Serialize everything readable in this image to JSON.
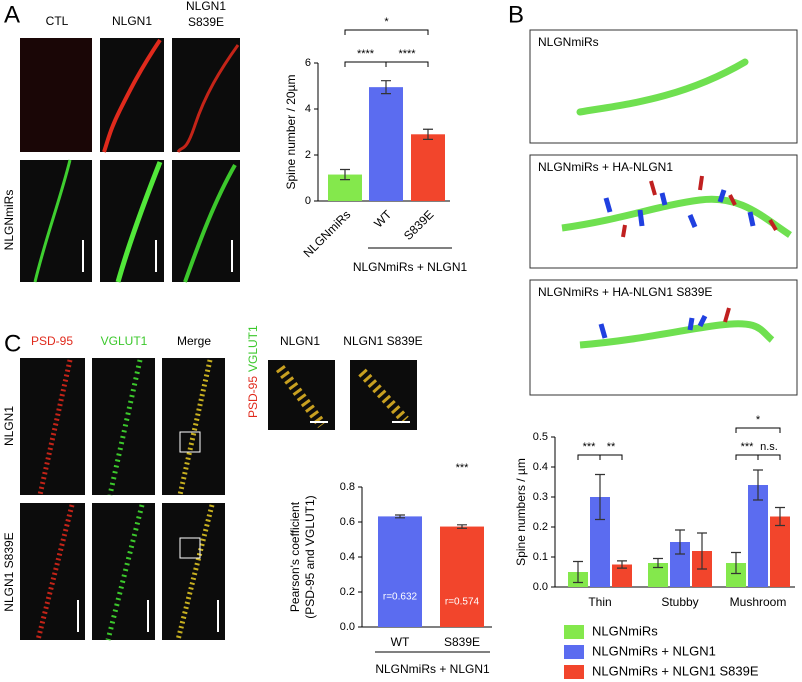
{
  "figure": {
    "panel_labels": [
      "A",
      "B",
      "C"
    ],
    "a_columns": [
      "CTL",
      "NLGN1",
      "NLGN1",
      "S839E"
    ],
    "a_row": "NLGNmiRs",
    "b_boxes": [
      "NLGNmiRs",
      "NLGNmiRs + HA-NLGN1",
      "NLGNmiRs + HA-NLGN1 S839E"
    ],
    "c_columns": [
      "PSD-95",
      "VGLUT1",
      "Merge"
    ],
    "c_rows": [
      "NLGN1",
      "NLGN1 S839E"
    ],
    "c_insets": [
      "NLGN1",
      "NLGN1 S839E"
    ],
    "c_inset_side": [
      "PSD-95",
      "VGLUT1"
    ]
  },
  "chart_data": [
    {
      "type": "bar",
      "ylabel": [
        "Spine number / 20µm"
      ],
      "categories": [
        "NLGNmiRs",
        "WT",
        "S839E"
      ],
      "values": [
        1.15,
        4.95,
        2.9
      ],
      "errors": [
        0.22,
        0.28,
        0.22
      ],
      "colors": [
        "#84e84c",
        "#5b6cf0",
        "#f2452c"
      ],
      "ylim": [
        0,
        6
      ],
      "yticks": [
        0,
        2,
        4,
        6
      ],
      "annotations": [
        "****",
        "****",
        "*"
      ],
      "group_label": "NLGNmiRs + NLGN1"
    },
    {
      "type": "bar",
      "ylabel": [
        "Spine numbers / µm"
      ],
      "categories": [
        "Thin",
        "Stubby",
        "Mushroom"
      ],
      "series": [
        {
          "name": "NLGNmiRs",
          "color": "#84e84c",
          "values": [
            0.05,
            0.08,
            0.08
          ],
          "errors": [
            0.035,
            0.015,
            0.035
          ]
        },
        {
          "name": "NLGNmiRs + NLGN1",
          "color": "#5b6cf0",
          "values": [
            0.3,
            0.15,
            0.34
          ],
          "errors": [
            0.075,
            0.04,
            0.05
          ]
        },
        {
          "name": "NLGNmiRs + NLGN1 S839E",
          "color": "#f2452c",
          "values": [
            0.075,
            0.12,
            0.235
          ],
          "errors": [
            0.012,
            0.06,
            0.03
          ]
        }
      ],
      "ylim": [
        0,
        0.5
      ],
      "yticks": [
        {
          "value": 0,
          "label": "0.0"
        },
        0.1,
        0.2,
        0.3,
        0.4,
        0.5
      ],
      "annotations": [
        "***",
        "**",
        "***",
        "n.s.",
        "*"
      ]
    },
    {
      "type": "bar",
      "ylabel": [
        "Pearson's coefficient",
        "(PSD-95 and VGLUT1)"
      ],
      "categories": [
        "WT",
        "S839E"
      ],
      "values": [
        0.632,
        0.574
      ],
      "value_labels": [
        "r=0.632",
        "r=0.574"
      ],
      "errors": [
        0.008,
        0.01
      ],
      "colors": [
        "#5b6cf0",
        "#f2452c"
      ],
      "ylim": [
        0,
        0.8
      ],
      "yticks": [
        {
          "value": 0,
          "label": "0.0"
        },
        0.2,
        0.4,
        0.6,
        0.8
      ],
      "annotations": [
        "***"
      ],
      "group_label": "NLGNmiRs + NLGN1"
    }
  ]
}
